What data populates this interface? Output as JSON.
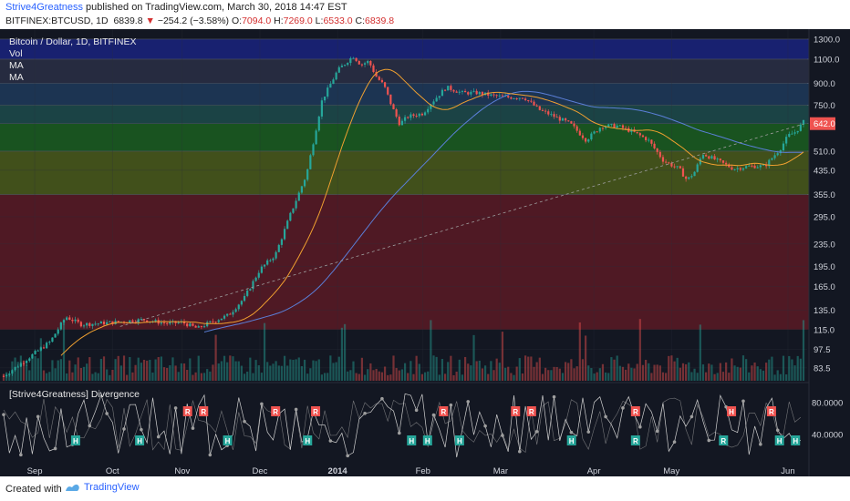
{
  "header": {
    "author": "Strive4Greatness",
    "published_text": " published on TradingView.com, March 30, 2018 14:47 EST",
    "symbol": "BITFINEX:BTCUSD, 1D",
    "price": "6839.8",
    "change": "−254.2 (−3.58%)",
    "open_label": "O:",
    "open": "7094.0",
    "high_label": "H:",
    "high": "7269.0",
    "low_label": "L:",
    "low": "6533.0",
    "close_label": "C:",
    "close": "6839.8",
    "change_arrow": "▼"
  },
  "overlay": {
    "title": "Bitcoin / Dollar, 1D, BITFINEX",
    "vol_label": "Vol",
    "ma1_label": "MA",
    "ma2_label": "MA",
    "indicator_title": "[Strive4Greatness] Divergence"
  },
  "footer": {
    "created_with": "Created with",
    "brand": "TradingView"
  },
  "colors": {
    "background": "#131722",
    "up": "#26a69a",
    "down": "#ef5350",
    "ma_fast": "#f0a030",
    "ma_slow": "#5b7fd8",
    "price_tag": "#ef5350"
  },
  "chart_data": {
    "type": "candlestick",
    "y_scale": "log",
    "ylim": [
      75,
      1350
    ],
    "y_ticks": [
      1300.0,
      1100.0,
      900.0,
      750.0,
      642.0,
      510.0,
      435.0,
      355.0,
      295.0,
      235.0,
      195.0,
      165.0,
      135.0,
      115.0,
      97.5,
      83.5
    ],
    "y_tick_labels": [
      "1300.0",
      "1100.0",
      "900.0",
      "750.0",
      "642.0",
      "510.0",
      "435.0",
      "355.0",
      "295.0",
      "235.0",
      "195.0",
      "165.0",
      "135.0",
      "115.0",
      "97.5",
      "83.5"
    ],
    "x_tick_labels": [
      "Sep",
      "Oct",
      "Nov",
      "Dec",
      "2014",
      "Feb",
      "Mar",
      "Apr",
      "May",
      "Jun"
    ],
    "last_price_label": "642.0",
    "horizontal_zones": [
      {
        "from": 1100,
        "to": 1300,
        "color": "#1a237e"
      },
      {
        "from": 900,
        "to": 1100,
        "color": "#2a2f45"
      },
      {
        "from": 750,
        "to": 900,
        "color": "#1e3a5a"
      },
      {
        "from": 642,
        "to": 750,
        "color": "#1d4b4b"
      },
      {
        "from": 510,
        "to": 642,
        "color": "#1b5e20"
      },
      {
        "from": 355,
        "to": 510,
        "color": "#4a5a1a"
      },
      {
        "from": 115,
        "to": 355,
        "color": "#5a1a24"
      }
    ],
    "price_path": [
      {
        "x": 0,
        "y": 78
      },
      {
        "x": 3,
        "y": 90
      },
      {
        "x": 6,
        "y": 104
      },
      {
        "x": 8,
        "y": 128
      },
      {
        "x": 10,
        "y": 120
      },
      {
        "x": 14,
        "y": 122
      },
      {
        "x": 18,
        "y": 125
      },
      {
        "x": 21,
        "y": 121
      },
      {
        "x": 23,
        "y": 122
      },
      {
        "x": 25,
        "y": 116
      },
      {
        "x": 26,
        "y": 120
      },
      {
        "x": 29,
        "y": 130
      },
      {
        "x": 31,
        "y": 150
      },
      {
        "x": 33,
        "y": 190
      },
      {
        "x": 35,
        "y": 215
      },
      {
        "x": 37,
        "y": 305
      },
      {
        "x": 39,
        "y": 420
      },
      {
        "x": 41,
        "y": 780
      },
      {
        "x": 43,
        "y": 1000
      },
      {
        "x": 45,
        "y": 1130
      },
      {
        "x": 46,
        "y": 1050
      },
      {
        "x": 47,
        "y": 1080
      },
      {
        "x": 48,
        "y": 950
      },
      {
        "x": 49,
        "y": 880
      },
      {
        "x": 50,
        "y": 740
      },
      {
        "x": 51,
        "y": 640
      },
      {
        "x": 52,
        "y": 680
      },
      {
        "x": 54,
        "y": 700
      },
      {
        "x": 55,
        "y": 760
      },
      {
        "x": 57,
        "y": 870
      },
      {
        "x": 59,
        "y": 830
      },
      {
        "x": 61,
        "y": 830
      },
      {
        "x": 63,
        "y": 810
      },
      {
        "x": 65,
        "y": 800
      },
      {
        "x": 67,
        "y": 800
      },
      {
        "x": 69,
        "y": 720
      },
      {
        "x": 71,
        "y": 680
      },
      {
        "x": 73,
        "y": 640
      },
      {
        "x": 75,
        "y": 560
      },
      {
        "x": 77,
        "y": 630
      },
      {
        "x": 79,
        "y": 630
      },
      {
        "x": 81,
        "y": 600
      },
      {
        "x": 83,
        "y": 560
      },
      {
        "x": 85,
        "y": 470
      },
      {
        "x": 87,
        "y": 440
      },
      {
        "x": 88,
        "y": 400
      },
      {
        "x": 89,
        "y": 430
      },
      {
        "x": 90,
        "y": 500
      },
      {
        "x": 92,
        "y": 470
      },
      {
        "x": 94,
        "y": 440
      },
      {
        "x": 96,
        "y": 450
      },
      {
        "x": 98,
        "y": 450
      },
      {
        "x": 100,
        "y": 520
      },
      {
        "x": 101,
        "y": 580
      },
      {
        "x": 102,
        "y": 600
      },
      {
        "x": 103,
        "y": 650
      }
    ],
    "x_tick_positions": [
      4,
      14,
      23,
      33,
      43,
      54,
      64,
      76,
      86,
      101
    ]
  }
}
